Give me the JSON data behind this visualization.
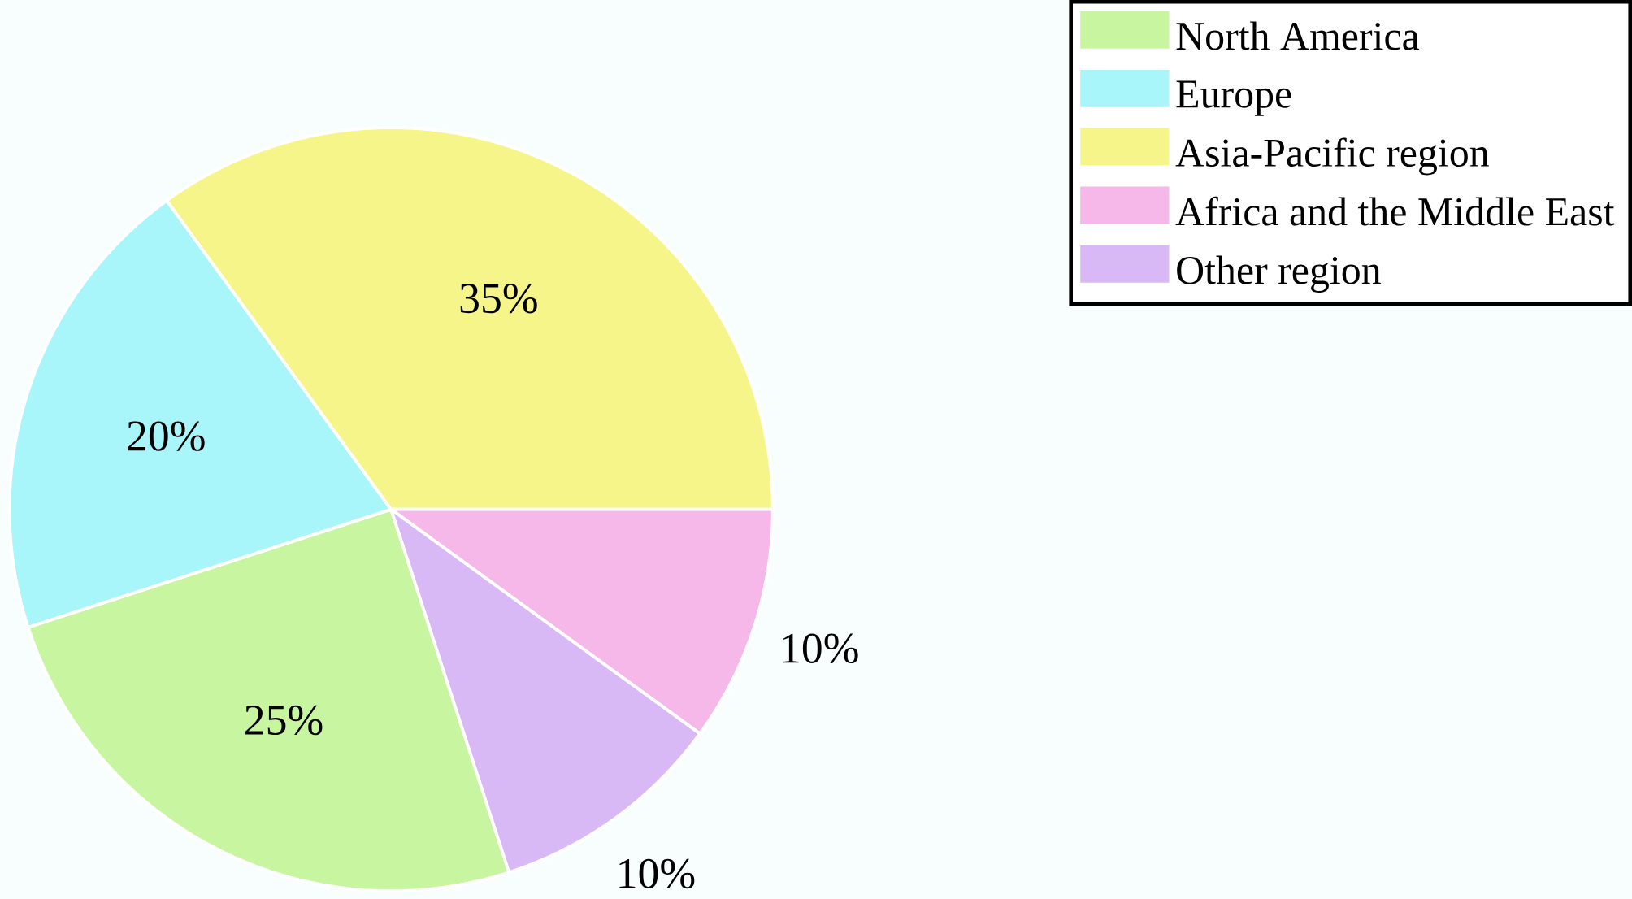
{
  "chart_data": {
    "type": "pie",
    "categories": [
      "North America",
      "Europe",
      "Asia-Pacific region",
      "Africa and the Middle East",
      "Other region"
    ],
    "values": [
      25,
      20,
      35,
      10,
      10
    ],
    "colors": [
      "#c8f5a0",
      "#a8f5fa",
      "#f5f58a",
      "#f5b8e8",
      "#d8b8f5"
    ],
    "value_labels": [
      "25%",
      "20%",
      "35%",
      "10%",
      "10%"
    ],
    "legend": "top right"
  }
}
